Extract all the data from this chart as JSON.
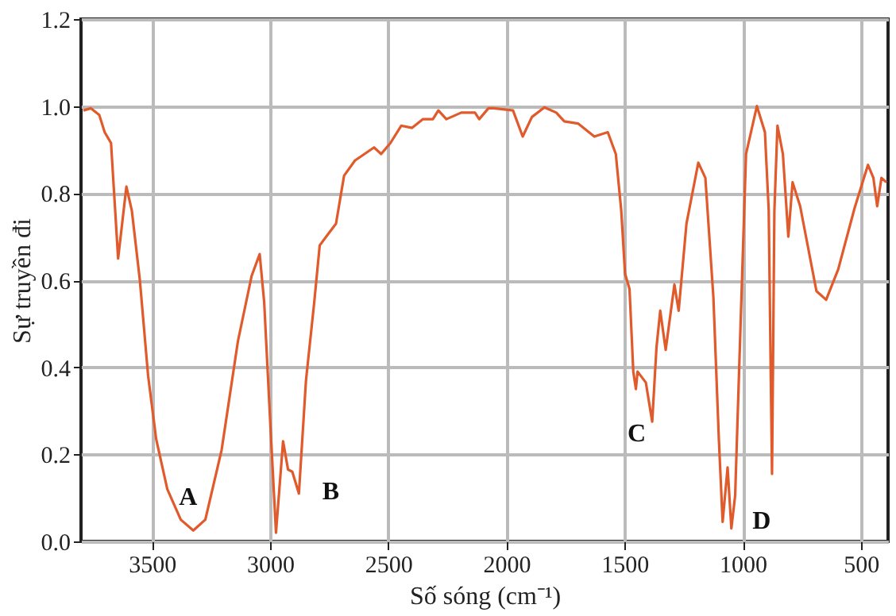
{
  "chart_data": {
    "type": "line",
    "xlabel": "Số sóng (cm⁻¹)",
    "ylabel": "Sự truyền đi",
    "x": [
      3790,
      3758,
      3723,
      3700,
      3673,
      3643,
      3608,
      3585,
      3551,
      3516,
      3482,
      3435,
      3378,
      3325,
      3274,
      3205,
      3136,
      3078,
      3044,
      3025,
      2998,
      2975,
      2945,
      2924,
      2906,
      2878,
      2848,
      2813,
      2790,
      2756,
      2721,
      2687,
      2641,
      2560,
      2530,
      2491,
      2445,
      2399,
      2353,
      2311,
      2288,
      2254,
      2191,
      2133,
      2115,
      2076,
      2053,
      1972,
      1931,
      1892,
      1839,
      1789,
      1755,
      1697,
      1628,
      1571,
      1537,
      1514,
      1498,
      1479,
      1463,
      1452,
      1445,
      1410,
      1383,
      1365,
      1349,
      1326,
      1289,
      1271,
      1238,
      1188,
      1158,
      1124,
      1101,
      1085,
      1064,
      1048,
      1032,
      1009,
      986,
      940,
      906,
      890,
      876,
      866,
      853,
      830,
      807,
      789,
      757,
      688,
      647,
      596,
      527,
      470,
      447,
      431,
      413,
      392
    ],
    "series": [
      {
        "color": "#e05a2b",
        "values": [
          0.99,
          0.995,
          0.98,
          0.94,
          0.915,
          0.65,
          0.815,
          0.76,
          0.6,
          0.38,
          0.235,
          0.12,
          0.05,
          0.025,
          0.05,
          0.21,
          0.46,
          0.61,
          0.66,
          0.55,
          0.26,
          0.02,
          0.23,
          0.165,
          0.16,
          0.11,
          0.37,
          0.55,
          0.68,
          0.705,
          0.73,
          0.84,
          0.875,
          0.905,
          0.89,
          0.915,
          0.955,
          0.95,
          0.97,
          0.97,
          0.99,
          0.97,
          0.985,
          0.985,
          0.97,
          0.995,
          0.995,
          0.99,
          0.93,
          0.975,
          0.997,
          0.985,
          0.965,
          0.96,
          0.93,
          0.94,
          0.89,
          0.76,
          0.615,
          0.58,
          0.39,
          0.35,
          0.39,
          0.365,
          0.275,
          0.445,
          0.53,
          0.44,
          0.59,
          0.53,
          0.73,
          0.87,
          0.835,
          0.56,
          0.235,
          0.045,
          0.17,
          0.03,
          0.105,
          0.5,
          0.89,
          1.0,
          0.94,
          0.76,
          0.155,
          0.76,
          0.955,
          0.89,
          0.7,
          0.825,
          0.77,
          0.575,
          0.555,
          0.625,
          0.765,
          0.865,
          0.835,
          0.77,
          0.835,
          0.825
        ]
      }
    ],
    "xlim": [
      3800,
      385
    ],
    "ylim": [
      0,
      1.2
    ],
    "xticks": [
      3500,
      3000,
      2500,
      2000,
      1500,
      1000,
      500
    ],
    "yticks": [
      {
        "value": 0,
        "label": "0.0"
      },
      {
        "value": 0.2,
        "label": "0.2"
      },
      {
        "value": 0.4,
        "label": "0.4"
      },
      {
        "value": 0.6,
        "label": "0.6"
      },
      {
        "value": 0.8,
        "label": "0.8"
      },
      {
        "value": 1.0,
        "label": "1.0"
      },
      {
        "value": 1.2,
        "label": "1.2"
      }
    ],
    "grid": true,
    "marker": "none",
    "line_style": "solid",
    "annotations": [
      "A",
      "B",
      "C",
      "D"
    ]
  }
}
